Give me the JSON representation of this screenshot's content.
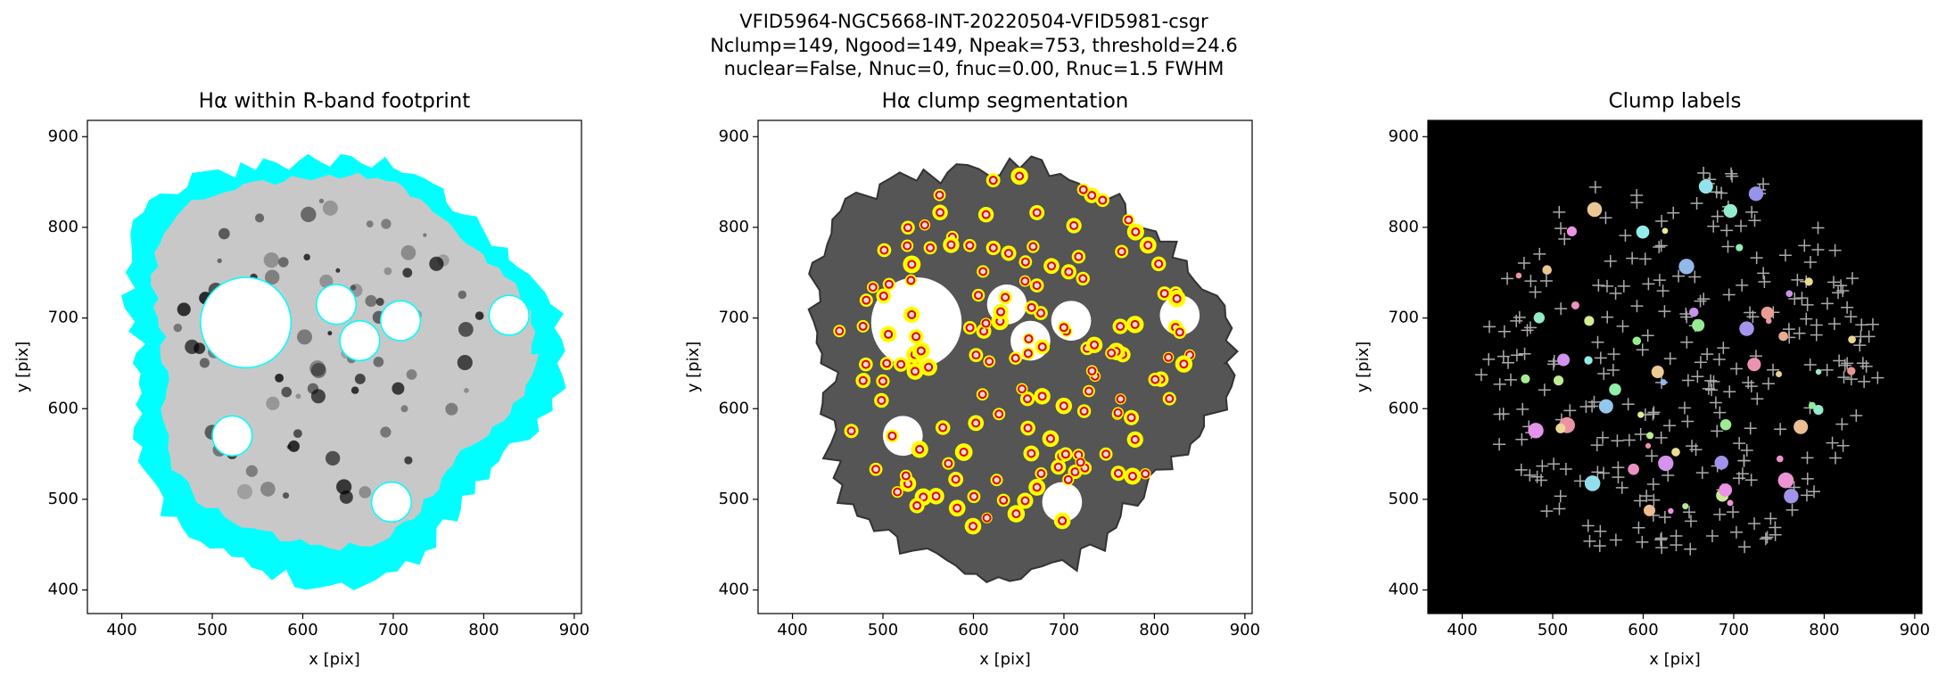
{
  "figure_title": [
    "VFID5964-NGC5668-INT-20220504-VFID5981-csgr",
    "Nclump=149, Ngood=149, Npeak=753, threshold=24.6",
    "nuclear=False, Nnuc=0, fnuc=0.00, Rnuc=1.5 FWHM"
  ],
  "chart_data": [
    {
      "type": "image",
      "title": "Hα within R-band footprint",
      "xlabel": "x [pix]",
      "ylabel": "y [pix]",
      "style": "footprint",
      "xlim": [
        362,
        908
      ],
      "ylim": [
        374,
        918
      ],
      "xticks": [
        400,
        500,
        600,
        700,
        800,
        900
      ],
      "yticks": [
        400,
        500,
        600,
        700,
        800,
        900
      ]
    },
    {
      "type": "image",
      "title": "Hα clump segmentation",
      "xlabel": "x [pix]",
      "ylabel": "y [pix]",
      "style": "segmentation",
      "xlim": [
        362,
        908
      ],
      "ylim": [
        374,
        918
      ],
      "xticks": [
        400,
        500,
        600,
        700,
        800,
        900
      ],
      "yticks": [
        400,
        500,
        600,
        700,
        800,
        900
      ]
    },
    {
      "type": "image",
      "title": "Clump labels",
      "xlabel": "x [pix]",
      "ylabel": "y [pix]",
      "style": "labels",
      "xlim": [
        362,
        908
      ],
      "ylim": [
        374,
        918
      ],
      "xticks": [
        400,
        500,
        600,
        700,
        800,
        900
      ],
      "yticks": [
        400,
        500,
        600,
        700,
        800,
        900
      ]
    }
  ]
}
